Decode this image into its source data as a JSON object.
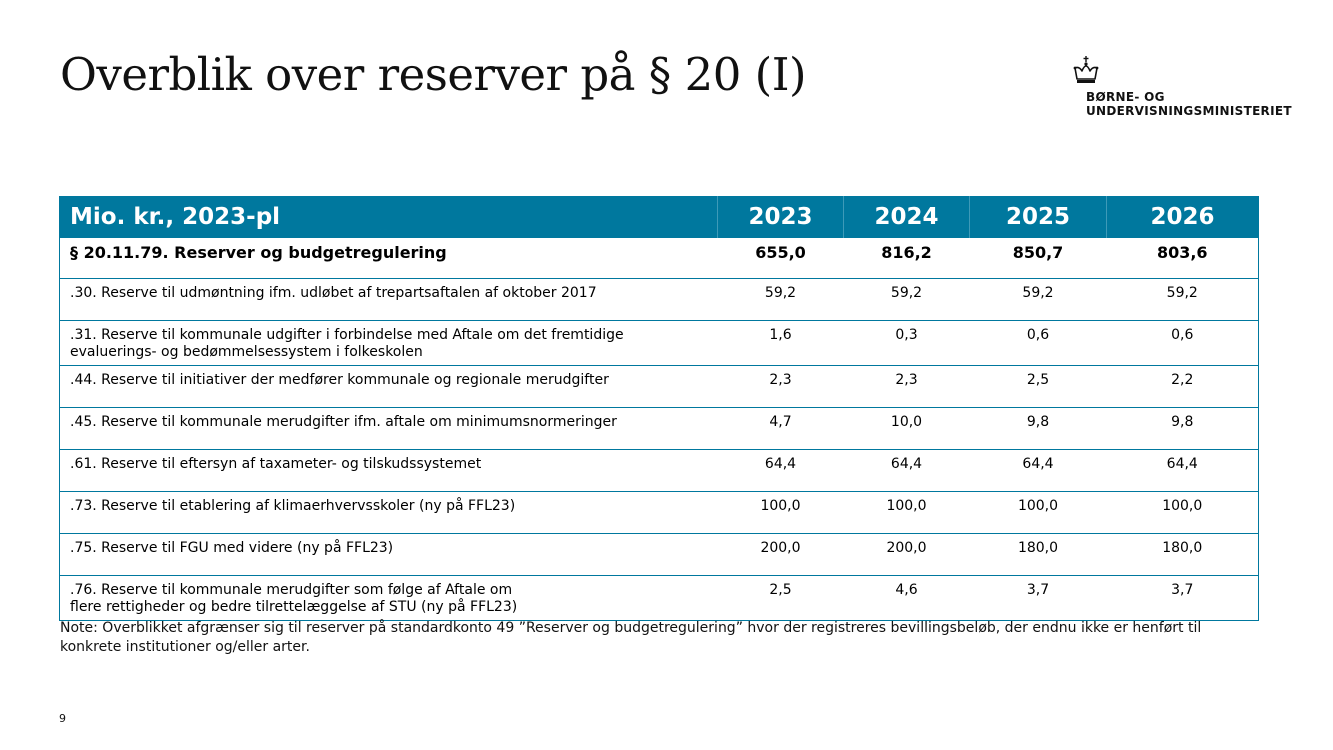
{
  "title": "Overblik over reserver på § 20 (I)",
  "logo": {
    "line1": "BØRNE- OG",
    "line2": "UNDERVISNINGSMINISTERIET",
    "icon": "crown-icon"
  },
  "table": {
    "headers": [
      "Mio. kr., 2023-pl",
      "2023",
      "2024",
      "2025",
      "2026"
    ],
    "total": {
      "label": "§ 20.11.79. Reserver og budgetregulering",
      "values": [
        "655,0",
        "816,2",
        "850,7",
        "803,6"
      ]
    },
    "rows": [
      {
        "label": ".30. Reserve til udmøntning ifm. udløbet af trepartsaftalen af oktober 2017",
        "values": [
          "59,2",
          "59,2",
          "59,2",
          "59,2"
        ]
      },
      {
        "label": ".31. Reserve til kommunale udgifter i forbindelse med Aftale om det fremtidige evaluerings- og bedømmelsessystem i folkeskolen",
        "values": [
          "1,6",
          "0,3",
          "0,6",
          "0,6"
        ]
      },
      {
        "label": ".44. Reserve til initiativer der medfører kommunale og regionale merudgifter",
        "values": [
          "2,3",
          "2,3",
          "2,5",
          "2,2"
        ]
      },
      {
        "label": ".45. Reserve til kommunale merudgifter ifm. aftale om minimumsnormeringer",
        "values": [
          "4,7",
          "10,0",
          "9,8",
          "9,8"
        ]
      },
      {
        "label": ".61. Reserve til eftersyn af taxameter- og tilskudssystemet",
        "values": [
          "64,4",
          "64,4",
          "64,4",
          "64,4"
        ]
      },
      {
        "label": ".73. Reserve til etablering af klimaerhvervsskoler (ny på FFL23)",
        "values": [
          "100,0",
          "100,0",
          "100,0",
          "100,0"
        ]
      },
      {
        "label": ".75. Reserve til FGU med videre (ny på FFL23)",
        "values": [
          "200,0",
          "200,0",
          "180,0",
          "180,0"
        ]
      },
      {
        "label": ".76. Reserve til kommunale merudgifter som følge af Aftale om flere rettigheder og bedre tilrettelæggelse af STU (ny på FFL23)",
        "values": [
          "2,5",
          "4,6",
          "3,7",
          "3,7"
        ]
      }
    ]
  },
  "note": "Note: Overblikket afgrænser sig til reserver på standardkonto 49 ”Reserver og budgetregulering” hvor der registreres bevillingsbeløb, der endnu ikke er henført til konkrete institutioner og/eller arter.",
  "page_number": "9"
}
